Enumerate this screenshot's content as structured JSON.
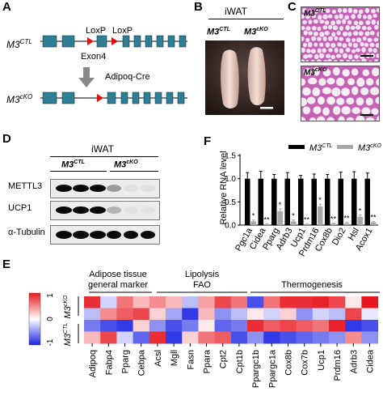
{
  "panels": {
    "A": {
      "letter": "A",
      "ctl_label": "M3",
      "ctl_sup": "CTL",
      "cko_label": "M3",
      "cko_sup": "cKO",
      "loxp_left": "LoxP",
      "loxp_right": "LoxP",
      "exon": "Exon4",
      "cre": "Adipoq-Cre",
      "colors": {
        "exon": "#2e7f94",
        "loxp": "#e01010",
        "arrow": "#888888"
      }
    },
    "B": {
      "letter": "B",
      "tissue": "iWAT",
      "ctl_label": "M3",
      "ctl_sup": "CTL",
      "cko_label": "M3",
      "cko_sup": "cKO"
    },
    "C": {
      "letter": "C",
      "top_label": "M3",
      "top_sup": "CTL",
      "bottom_label": "M3",
      "bottom_sup": "cKO"
    },
    "D": {
      "letter": "D",
      "tissue": "iWAT",
      "ctl_label": "M3",
      "ctl_sup": "CTL",
      "cko_label": "M3",
      "cko_sup": "cKO",
      "rows": [
        {
          "label": "METTL3",
          "intensities": [
            1,
            1,
            1,
            0.35,
            0.05,
            0.05
          ]
        },
        {
          "label": "UCP1",
          "intensities": [
            1,
            1,
            1,
            0.25,
            0.04,
            0.04
          ]
        },
        {
          "label": "α-Tubulin",
          "intensities": [
            1,
            1,
            1,
            1,
            1,
            1
          ]
        }
      ]
    },
    "F": {
      "letter": "F",
      "legend_ctl": "M3",
      "legend_ctl_sup": "CTL",
      "legend_cko": "M3",
      "legend_cko_sup": "cKO",
      "colors": {
        "ctl": "#000000",
        "cko": "#a8a8a8"
      }
    },
    "E": {
      "letter": "E",
      "group1_line1": "Adipose tissue",
      "group1_line2": "general marker",
      "group2_line1": "Lipolysis",
      "group2_line2": "FAO",
      "group3": "Thermogenesis",
      "row_cko": "M3",
      "row_cko_sup": "cKO",
      "row_ctl": "M3",
      "row_ctl_sup": "CTL",
      "scale_ticks": [
        "1",
        "0",
        "-1"
      ],
      "genes": [
        "Adipoq",
        "Fabp4",
        "Pparg",
        "Cebpa",
        "Acsl",
        "Mgll",
        "Fasn",
        "Ppara",
        "Cpt2",
        "Cpt1b",
        "Ppargc1b",
        "Ppargc1a",
        "Cox8b",
        "Cox7b",
        "Ucp1",
        "Prdm16",
        "Adrb3",
        "Cidea"
      ],
      "matrix": [
        [
          0.9,
          -0.2,
          0.6,
          0.3,
          0.5,
          0.3,
          -0.3,
          0.4,
          0.8,
          0.6,
          -0.8,
          0.6,
          0.9,
          0.9,
          0.95,
          0.8,
          0.1,
          1.0
        ],
        [
          -0.3,
          0.5,
          0.7,
          0.8,
          0.2,
          -0.4,
          -0.9,
          0.3,
          -0.5,
          -0.3,
          0.1,
          -0.2,
          0.2,
          -0.5,
          -0.2,
          -0.3,
          0.8,
          -0.1
        ],
        [
          -0.6,
          -0.8,
          -0.9,
          0.2,
          -0.5,
          -0.8,
          -0.6,
          0.1,
          -0.7,
          -0.6,
          0.9,
          0.7,
          0.8,
          0.7,
          0.6,
          0.95,
          -0.9,
          -0.8
        ],
        [
          0.3,
          0.8,
          -0.2,
          -0.7,
          0.9,
          -0.9,
          0.2,
          0.6,
          0.7,
          -0.8,
          -0.5,
          -0.9,
          -0.8,
          -0.7,
          -0.6,
          -0.5,
          0.5,
          -0.5
        ]
      ]
    }
  },
  "chart_data": {
    "type": "bar",
    "ylabel": "Relative RNA level",
    "ylim": [
      0,
      1.5
    ],
    "yticks": [
      "0.0",
      "0.5",
      "1.0",
      "1.5"
    ],
    "categories": [
      "Pgc1a",
      "Cidea",
      "Pparg",
      "Adrb3",
      "Ucp1",
      "Prdm16",
      "Cox8b",
      "Dio2",
      "Hsl",
      "Acox1"
    ],
    "series": [
      {
        "name": "M3 CTL",
        "values": [
          1.0,
          1.0,
          1.0,
          1.0,
          1.0,
          1.0,
          1.0,
          1.0,
          1.0,
          1.0
        ],
        "errors": [
          0.13,
          0.16,
          0.09,
          0.13,
          0.07,
          0.1,
          0.09,
          0.14,
          0.15,
          0.12
        ]
      },
      {
        "name": "M3 cKO",
        "values": [
          0.08,
          0.02,
          0.3,
          0.08,
          0.02,
          0.4,
          0.03,
          0.04,
          0.18,
          0.06
        ],
        "errors": [
          0.03,
          0.01,
          0.05,
          0.03,
          0.01,
          0.05,
          0.01,
          0.02,
          0.04,
          0.02
        ]
      }
    ],
    "significance": [
      "*",
      "**",
      "*",
      "*",
      "**",
      "*",
      "**",
      "**",
      "*",
      "**"
    ],
    "legend": "top-right"
  }
}
